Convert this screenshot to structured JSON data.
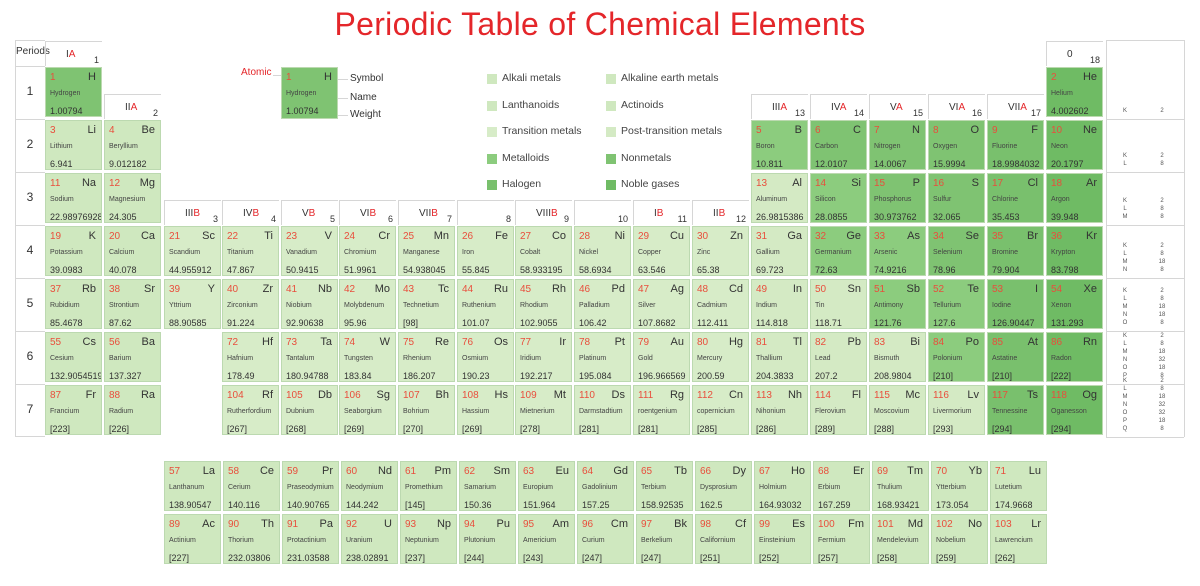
{
  "title": "Periodic Table of Chemical Elements",
  "periods_header": "Periods",
  "colors": {
    "title": "#e4262a",
    "number": "#e94e3c",
    "border": "#bcd9b0",
    "alkali": "#cfe8bf",
    "alkaline": "#cfe8bf",
    "transition": "#d7ecc8",
    "post": "#d4eac4",
    "metalloid": "#8ccc7e",
    "nonmetal": "#7fc372",
    "halogen": "#79c06d",
    "noble": "#6fbb64",
    "lanth": "#cfe8bf",
    "act": "#cfe8bf",
    "unknown": "#c8e3b8"
  },
  "groups": [
    {
      "roman": "I",
      "suffix": "A",
      "num": "1"
    },
    {
      "roman": "II",
      "suffix": "A",
      "num": "2"
    },
    {
      "roman": "III",
      "suffix": "B",
      "num": "3"
    },
    {
      "roman": "IV",
      "suffix": "B",
      "num": "4"
    },
    {
      "roman": "V",
      "suffix": "B",
      "num": "5"
    },
    {
      "roman": "VI",
      "suffix": "B",
      "num": "6"
    },
    {
      "roman": "VII",
      "suffix": "B",
      "num": "7"
    },
    {
      "roman": "",
      "suffix": "",
      "num": "8"
    },
    {
      "roman": "VIII",
      "suffix": "B",
      "num": "9"
    },
    {
      "roman": "",
      "suffix": "",
      "num": "10"
    },
    {
      "roman": "I",
      "suffix": "B",
      "num": "11"
    },
    {
      "roman": "II",
      "suffix": "B",
      "num": "12"
    },
    {
      "roman": "III",
      "suffix": "A",
      "num": "13"
    },
    {
      "roman": "IV",
      "suffix": "A",
      "num": "14"
    },
    {
      "roman": "V",
      "suffix": "A",
      "num": "15"
    },
    {
      "roman": "VI",
      "suffix": "A",
      "num": "16"
    },
    {
      "roman": "VII",
      "suffix": "A",
      "num": "17"
    },
    {
      "roman": "0",
      "suffix": "",
      "num": "18"
    }
  ],
  "period_numbers": [
    "1",
    "2",
    "3",
    "4",
    "5",
    "6",
    "7"
  ],
  "shells": [
    {
      "letters": "K",
      "counts": "2"
    },
    {
      "letters": "K\nL",
      "counts": "2\n8"
    },
    {
      "letters": "K\nL\nM",
      "counts": "2\n8\n8"
    },
    {
      "letters": "K\nL\nM\nN",
      "counts": "2\n8\n18\n8"
    },
    {
      "letters": "K\nL\nM\nN\nO",
      "counts": "2\n8\n18\n18\n8"
    },
    {
      "letters": "K\nL\nM\nN\nO\nP",
      "counts": "2\n8\n18\n32\n18\n8"
    },
    {
      "letters": "K\nL\nM\nN\nO\nP\nQ",
      "counts": "2\n8\n18\n32\n32\n18\n8"
    }
  ],
  "key": {
    "atomic": "Atomic",
    "symbol": "Symbol",
    "name": "Name",
    "weight": "Weight",
    "n": "1",
    "s": "H",
    "nm": "Hydrogen",
    "w": "1.00794"
  },
  "legend": [
    {
      "label": "Alkali metals",
      "cat": "alkali"
    },
    {
      "label": "Alkaline earth metals",
      "cat": "alkaline"
    },
    {
      "label": "Lanthanoids",
      "cat": "lanth"
    },
    {
      "label": "Actinoids",
      "cat": "act"
    },
    {
      "label": "Transition metals",
      "cat": "transition"
    },
    {
      "label": "Post-transition metals",
      "cat": "post"
    },
    {
      "label": "Metalloids",
      "cat": "metalloid"
    },
    {
      "label": "Nonmetals",
      "cat": "nonmetal"
    },
    {
      "label": "Halogen",
      "cat": "halogen"
    },
    {
      "label": "Noble gases",
      "cat": "noble"
    }
  ],
  "elements": [
    {
      "n": "1",
      "s": "H",
      "nm": "Hydrogen",
      "w": "1.00794",
      "cat": "nonmetal"
    },
    {
      "n": "2",
      "s": "He",
      "nm": "Helium",
      "w": "4.002602",
      "cat": "noble"
    },
    {
      "n": "3",
      "s": "Li",
      "nm": "Lithium",
      "w": "6.941",
      "cat": "alkali"
    },
    {
      "n": "4",
      "s": "Be",
      "nm": "Beryllium",
      "w": "9.012182",
      "cat": "alkaline"
    },
    {
      "n": "5",
      "s": "B",
      "nm": "Boron",
      "w": "10.811",
      "cat": "metalloid"
    },
    {
      "n": "6",
      "s": "C",
      "nm": "Carbon",
      "w": "12.0107",
      "cat": "nonmetal"
    },
    {
      "n": "7",
      "s": "N",
      "nm": "Nitrogen",
      "w": "14.0067",
      "cat": "nonmetal"
    },
    {
      "n": "8",
      "s": "O",
      "nm": "Oxygen",
      "w": "15.9994",
      "cat": "nonmetal"
    },
    {
      "n": "9",
      "s": "F",
      "nm": "Fluorine",
      "w": "18.9984032",
      "cat": "halogen"
    },
    {
      "n": "10",
      "s": "Ne",
      "nm": "Neon",
      "w": "20.1797",
      "cat": "noble"
    },
    {
      "n": "11",
      "s": "Na",
      "nm": "Sodium",
      "w": "22.98976928",
      "cat": "alkali"
    },
    {
      "n": "12",
      "s": "Mg",
      "nm": "Magnesium",
      "w": "24.305",
      "cat": "alkaline"
    },
    {
      "n": "13",
      "s": "Al",
      "nm": "Aluminum",
      "w": "26.9815386",
      "cat": "post"
    },
    {
      "n": "14",
      "s": "Si",
      "nm": "Silicon",
      "w": "28.0855",
      "cat": "metalloid"
    },
    {
      "n": "15",
      "s": "P",
      "nm": "Phosphorus",
      "w": "30.973762",
      "cat": "nonmetal"
    },
    {
      "n": "16",
      "s": "S",
      "nm": "Sulfur",
      "w": "32.065",
      "cat": "nonmetal"
    },
    {
      "n": "17",
      "s": "Cl",
      "nm": "Chlorine",
      "w": "35.453",
      "cat": "halogen"
    },
    {
      "n": "18",
      "s": "Ar",
      "nm": "Argon",
      "w": "39.948",
      "cat": "noble"
    },
    {
      "n": "19",
      "s": "K",
      "nm": "Potassium",
      "w": "39.0983",
      "cat": "alkali"
    },
    {
      "n": "20",
      "s": "Ca",
      "nm": "Calcium",
      "w": "40.078",
      "cat": "alkaline"
    },
    {
      "n": "21",
      "s": "Sc",
      "nm": "Scandium",
      "w": "44.955912",
      "cat": "transition"
    },
    {
      "n": "22",
      "s": "Ti",
      "nm": "Titanium",
      "w": "47.867",
      "cat": "transition"
    },
    {
      "n": "23",
      "s": "V",
      "nm": "Vanadium",
      "w": "50.9415",
      "cat": "transition"
    },
    {
      "n": "24",
      "s": "Cr",
      "nm": "Chromium",
      "w": "51.9961",
      "cat": "transition"
    },
    {
      "n": "25",
      "s": "Mn",
      "nm": "Manganese",
      "w": "54.938045",
      "cat": "transition"
    },
    {
      "n": "26",
      "s": "Fe",
      "nm": "Iron",
      "w": "55.845",
      "cat": "transition"
    },
    {
      "n": "27",
      "s": "Co",
      "nm": "Cobalt",
      "w": "58.933195",
      "cat": "transition"
    },
    {
      "n": "28",
      "s": "Ni",
      "nm": "Nickel",
      "w": "58.6934",
      "cat": "transition"
    },
    {
      "n": "29",
      "s": "Cu",
      "nm": "Copper",
      "w": "63.546",
      "cat": "transition"
    },
    {
      "n": "30",
      "s": "Zn",
      "nm": "Zinc",
      "w": "65.38",
      "cat": "transition"
    },
    {
      "n": "31",
      "s": "Ga",
      "nm": "Gallium",
      "w": "69.723",
      "cat": "post"
    },
    {
      "n": "32",
      "s": "Ge",
      "nm": "Germanium",
      "w": "72.63",
      "cat": "metalloid"
    },
    {
      "n": "33",
      "s": "As",
      "nm": "Arsenic",
      "w": "74.9216",
      "cat": "metalloid"
    },
    {
      "n": "34",
      "s": "Se",
      "nm": "Selenium",
      "w": "78.96",
      "cat": "nonmetal"
    },
    {
      "n": "35",
      "s": "Br",
      "nm": "Bromine",
      "w": "79.904",
      "cat": "halogen"
    },
    {
      "n": "36",
      "s": "Kr",
      "nm": "Krypton",
      "w": "83.798",
      "cat": "noble"
    },
    {
      "n": "37",
      "s": "Rb",
      "nm": "Rubidium",
      "w": "85.4678",
      "cat": "alkali"
    },
    {
      "n": "38",
      "s": "Sr",
      "nm": "Strontium",
      "w": "87.62",
      "cat": "alkaline"
    },
    {
      "n": "39",
      "s": "Y",
      "nm": "Yttrium",
      "w": "88.90585",
      "cat": "transition"
    },
    {
      "n": "40",
      "s": "Zr",
      "nm": "Zirconium",
      "w": "91.224",
      "cat": "transition"
    },
    {
      "n": "41",
      "s": "Nb",
      "nm": "Niobium",
      "w": "92.90638",
      "cat": "transition"
    },
    {
      "n": "42",
      "s": "Mo",
      "nm": "Molybdenum",
      "w": "95.96",
      "cat": "transition"
    },
    {
      "n": "43",
      "s": "Tc",
      "nm": "Technetium",
      "w": "[98]",
      "cat": "transition"
    },
    {
      "n": "44",
      "s": "Ru",
      "nm": "Ruthenium",
      "w": "101.07",
      "cat": "transition"
    },
    {
      "n": "45",
      "s": "Rh",
      "nm": "Rhodium",
      "w": "102.9055",
      "cat": "transition"
    },
    {
      "n": "46",
      "s": "Pd",
      "nm": "Palladium",
      "w": "106.42",
      "cat": "transition"
    },
    {
      "n": "47",
      "s": "Ag",
      "nm": "Silver",
      "w": "107.8682",
      "cat": "transition"
    },
    {
      "n": "48",
      "s": "Cd",
      "nm": "Cadmium",
      "w": "112.411",
      "cat": "transition"
    },
    {
      "n": "49",
      "s": "In",
      "nm": "Indium",
      "w": "114.818",
      "cat": "post"
    },
    {
      "n": "50",
      "s": "Sn",
      "nm": "Tin",
      "w": "118.71",
      "cat": "post"
    },
    {
      "n": "51",
      "s": "Sb",
      "nm": "Antimony",
      "w": "121.76",
      "cat": "metalloid"
    },
    {
      "n": "52",
      "s": "Te",
      "nm": "Tellurium",
      "w": "127.6",
      "cat": "metalloid"
    },
    {
      "n": "53",
      "s": "I",
      "nm": "Iodine",
      "w": "126.90447",
      "cat": "halogen"
    },
    {
      "n": "54",
      "s": "Xe",
      "nm": "Xenon",
      "w": "131.293",
      "cat": "noble"
    },
    {
      "n": "55",
      "s": "Cs",
      "nm": "Cesium",
      "w": "132.9054519",
      "cat": "alkali"
    },
    {
      "n": "56",
      "s": "Ba",
      "nm": "Barium",
      "w": "137.327",
      "cat": "alkaline"
    },
    {
      "n": "72",
      "s": "Hf",
      "nm": "Hafnium",
      "w": "178.49",
      "cat": "transition"
    },
    {
      "n": "73",
      "s": "Ta",
      "nm": "Tantalum",
      "w": "180.94788",
      "cat": "transition"
    },
    {
      "n": "74",
      "s": "W",
      "nm": "Tungsten",
      "w": "183.84",
      "cat": "transition"
    },
    {
      "n": "75",
      "s": "Re",
      "nm": "Rhenium",
      "w": "186.207",
      "cat": "transition"
    },
    {
      "n": "76",
      "s": "Os",
      "nm": "Osmium",
      "w": "190.23",
      "cat": "transition"
    },
    {
      "n": "77",
      "s": "Ir",
      "nm": "Iridium",
      "w": "192.217",
      "cat": "transition"
    },
    {
      "n": "78",
      "s": "Pt",
      "nm": "Platinum",
      "w": "195.084",
      "cat": "transition"
    },
    {
      "n": "79",
      "s": "Au",
      "nm": "Gold",
      "w": "196.966569",
      "cat": "transition"
    },
    {
      "n": "80",
      "s": "Hg",
      "nm": "Mercury",
      "w": "200.59",
      "cat": "transition"
    },
    {
      "n": "81",
      "s": "Tl",
      "nm": "Thallium",
      "w": "204.3833",
      "cat": "post"
    },
    {
      "n": "82",
      "s": "Pb",
      "nm": "Lead",
      "w": "207.2",
      "cat": "post"
    },
    {
      "n": "83",
      "s": "Bi",
      "nm": "Bismuth",
      "w": "208.9804",
      "cat": "post"
    },
    {
      "n": "84",
      "s": "Po",
      "nm": "Polonium",
      "w": "[210]",
      "cat": "metalloid"
    },
    {
      "n": "85",
      "s": "At",
      "nm": "Astatine",
      "w": "[210]",
      "cat": "halogen"
    },
    {
      "n": "86",
      "s": "Rn",
      "nm": "Radon",
      "w": "[222]",
      "cat": "noble"
    },
    {
      "n": "87",
      "s": "Fr",
      "nm": "Francium",
      "w": "[223]",
      "cat": "alkali"
    },
    {
      "n": "88",
      "s": "Ra",
      "nm": "Radium",
      "w": "[226]",
      "cat": "alkaline"
    },
    {
      "n": "104",
      "s": "Rf",
      "nm": "Rutherfordium",
      "w": "[267]",
      "cat": "transition"
    },
    {
      "n": "105",
      "s": "Db",
      "nm": "Dubnium",
      "w": "[268]",
      "cat": "transition"
    },
    {
      "n": "106",
      "s": "Sg",
      "nm": "Seaborgium",
      "w": "[269]",
      "cat": "transition"
    },
    {
      "n": "107",
      "s": "Bh",
      "nm": "Bohrium",
      "w": "[270]",
      "cat": "transition"
    },
    {
      "n": "108",
      "s": "Hs",
      "nm": "Hassium",
      "w": "[269]",
      "cat": "transition"
    },
    {
      "n": "109",
      "s": "Mt",
      "nm": "Mietnerium",
      "w": "[278]",
      "cat": "transition"
    },
    {
      "n": "110",
      "s": "Ds",
      "nm": "Darmstadtium",
      "w": "[281]",
      "cat": "transition"
    },
    {
      "n": "111",
      "s": "Rg",
      "nm": "roentgenium",
      "w": "[281]",
      "cat": "transition"
    },
    {
      "n": "112",
      "s": "Cn",
      "nm": "copernicium",
      "w": "[285]",
      "cat": "transition"
    },
    {
      "n": "113",
      "s": "Nh",
      "nm": "Nihonium",
      "w": "[286]",
      "cat": "post"
    },
    {
      "n": "114",
      "s": "Fl",
      "nm": "Flerovium",
      "w": "[289]",
      "cat": "post"
    },
    {
      "n": "115",
      "s": "Mc",
      "nm": "Moscovium",
      "w": "[288]",
      "cat": "post"
    },
    {
      "n": "116",
      "s": "Lv",
      "nm": "Livermorium",
      "w": "[293]",
      "cat": "post"
    },
    {
      "n": "117",
      "s": "Ts",
      "nm": "Tennessine",
      "w": "[294]",
      "cat": "halogen"
    },
    {
      "n": "118",
      "s": "Og",
      "nm": "Oganesson",
      "w": "[294]",
      "cat": "noble"
    }
  ],
  "lanthanoids": [
    {
      "n": "57",
      "s": "La",
      "nm": "Lanthanum",
      "w": "138.90547"
    },
    {
      "n": "58",
      "s": "Ce",
      "nm": "Cerium",
      "w": "140.116"
    },
    {
      "n": "59",
      "s": "Pr",
      "nm": "Praseodymium",
      "w": "140.90765"
    },
    {
      "n": "60",
      "s": "Nd",
      "nm": "Neodymium",
      "w": "144.242"
    },
    {
      "n": "61",
      "s": "Pm",
      "nm": "Promethium",
      "w": "[145]"
    },
    {
      "n": "62",
      "s": "Sm",
      "nm": "Samarium",
      "w": "150.36"
    },
    {
      "n": "63",
      "s": "Eu",
      "nm": "Europium",
      "w": "151.964"
    },
    {
      "n": "64",
      "s": "Gd",
      "nm": "Gadolinium",
      "w": "157.25"
    },
    {
      "n": "65",
      "s": "Tb",
      "nm": "Terbium",
      "w": "158.92535"
    },
    {
      "n": "66",
      "s": "Dy",
      "nm": "Dysprosium",
      "w": "162.5"
    },
    {
      "n": "67",
      "s": "Ho",
      "nm": "Holmium",
      "w": "164.93032"
    },
    {
      "n": "68",
      "s": "Er",
      "nm": "Erbium",
      "w": "167.259"
    },
    {
      "n": "69",
      "s": "Tm",
      "nm": "Thulium",
      "w": "168.93421"
    },
    {
      "n": "70",
      "s": "Yb",
      "nm": "Ytterbium",
      "w": "173.054"
    },
    {
      "n": "71",
      "s": "Lu",
      "nm": "Lutetium",
      "w": "174.9668"
    }
  ],
  "actinoids": [
    {
      "n": "89",
      "s": "Ac",
      "nm": "Actinium",
      "w": "[227]"
    },
    {
      "n": "90",
      "s": "Th",
      "nm": "Thorium",
      "w": "232.03806"
    },
    {
      "n": "91",
      "s": "Pa",
      "nm": "Protactinium",
      "w": "231.03588"
    },
    {
      "n": "92",
      "s": "U",
      "nm": "Uranium",
      "w": "238.02891"
    },
    {
      "n": "93",
      "s": "Np",
      "nm": "Neptunium",
      "w": "[237]"
    },
    {
      "n": "94",
      "s": "Pu",
      "nm": "Plutonium",
      "w": "[244]"
    },
    {
      "n": "95",
      "s": "Am",
      "nm": "Americium",
      "w": "[243]"
    },
    {
      "n": "96",
      "s": "Cm",
      "nm": "Curium",
      "w": "[247]"
    },
    {
      "n": "97",
      "s": "Bk",
      "nm": "Berkelium",
      "w": "[247]"
    },
    {
      "n": "98",
      "s": "Cf",
      "nm": "Californium",
      "w": "[251]"
    },
    {
      "n": "99",
      "s": "Es",
      "nm": "Einsteinium",
      "w": "[252]"
    },
    {
      "n": "100",
      "s": "Fm",
      "nm": "Fermium",
      "w": "[257]"
    },
    {
      "n": "101",
      "s": "Md",
      "nm": "Mendelevium",
      "w": "[258]"
    },
    {
      "n": "102",
      "s": "No",
      "nm": "Nobelium",
      "w": "[259]"
    },
    {
      "n": "103",
      "s": "Lr",
      "nm": "Lawrencium",
      "w": "[262]"
    }
  ]
}
